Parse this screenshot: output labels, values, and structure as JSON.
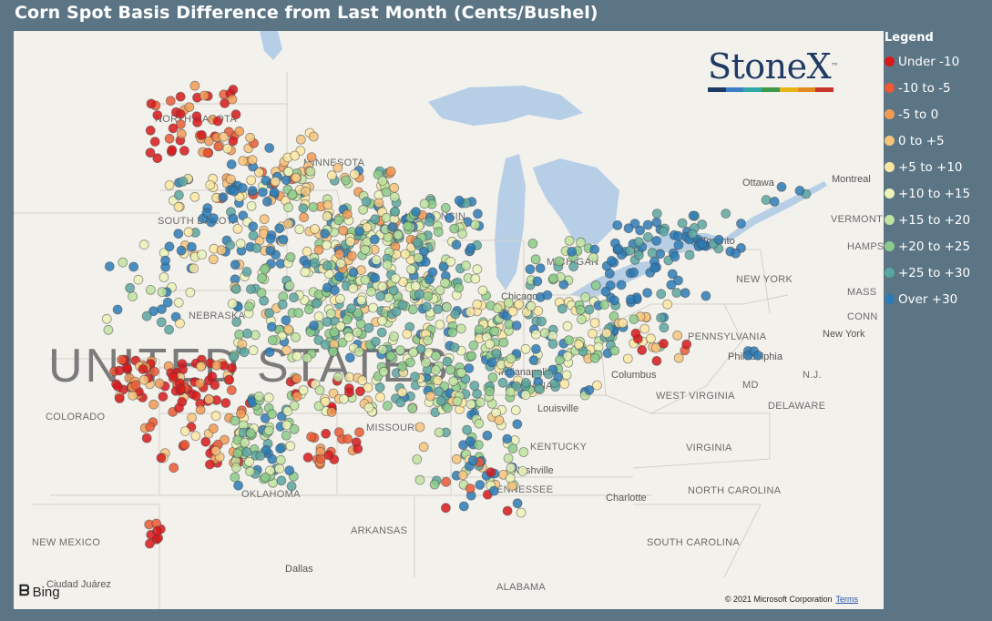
{
  "title": "Corn Spot Basis Difference from Last Month (Cents/Bushel)",
  "legend": {
    "title": "Legend",
    "items": [
      {
        "label": "Under -10",
        "color": "#d7191c"
      },
      {
        "label": "-10 to -5",
        "color": "#ea5a35"
      },
      {
        "label": "-5 to 0",
        "color": "#f19a55"
      },
      {
        "label": "0 to +5",
        "color": "#f7c47c"
      },
      {
        "label": "+5 to +10",
        "color": "#fbe7a3"
      },
      {
        "label": "+10 to +15",
        "color": "#eaf3b8"
      },
      {
        "label": "+15 to +20",
        "color": "#c0e3a0"
      },
      {
        "label": "+20 to +25",
        "color": "#8ccb8a"
      },
      {
        "label": "+25 to +30",
        "color": "#5aa6a1"
      },
      {
        "label": "Over +30",
        "color": "#2c7bb6"
      }
    ]
  },
  "logo": {
    "text": "StoneX",
    "tm": "™",
    "bar_colors": [
      "#1f3a64",
      "#3d7fc4",
      "#2ea8a6",
      "#3a9a48",
      "#e7b518",
      "#e08a1f",
      "#c8352d"
    ]
  },
  "map": {
    "attribution_provider": "Bing",
    "copyright": "© 2021 Microsoft Corporation",
    "terms_link": "Terms",
    "country_label": "UNITED STATES",
    "labels": [
      {
        "text": "NORTH DAKOTA",
        "kind": "state"
      },
      {
        "text": "MINNESOTA",
        "kind": "state"
      },
      {
        "text": "SOUTH DAKOTA",
        "kind": "state"
      },
      {
        "text": "WISCONSIN",
        "kind": "state"
      },
      {
        "text": "MICHIGAN",
        "kind": "state"
      },
      {
        "text": "NEBRASKA",
        "kind": "state"
      },
      {
        "text": "COLORADO",
        "kind": "state"
      },
      {
        "text": "MISSOURI",
        "kind": "state"
      },
      {
        "text": "KENTUCKY",
        "kind": "state"
      },
      {
        "text": "TENNESSEE",
        "kind": "state"
      },
      {
        "text": "OKLAHOMA",
        "kind": "state"
      },
      {
        "text": "ARKANSAS",
        "kind": "state"
      },
      {
        "text": "NEW MEXICO",
        "kind": "state"
      },
      {
        "text": "ALABAMA",
        "kind": "state"
      },
      {
        "text": "WEST VIRGINIA",
        "kind": "state"
      },
      {
        "text": "VIRGINIA",
        "kind": "state"
      },
      {
        "text": "NORTH CAROLINA",
        "kind": "state"
      },
      {
        "text": "SOUTH CAROLINA",
        "kind": "state"
      },
      {
        "text": "PENNSYLVANIA",
        "kind": "state"
      },
      {
        "text": "NEW YORK",
        "kind": "state"
      },
      {
        "text": "VERMONT",
        "kind": "state"
      },
      {
        "text": "HAMPSHIRE",
        "kind": "state"
      },
      {
        "text": "MASS",
        "kind": "state"
      },
      {
        "text": "CONN",
        "kind": "state"
      },
      {
        "text": "N.J.",
        "kind": "state"
      },
      {
        "text": "MD",
        "kind": "state"
      },
      {
        "text": "DELAWARE",
        "kind": "state"
      },
      {
        "text": "INDIANA",
        "kind": "state"
      },
      {
        "text": "Chicago",
        "kind": "city"
      },
      {
        "text": "Columbus",
        "kind": "city"
      },
      {
        "text": "Louisville",
        "kind": "city"
      },
      {
        "text": "Nashville",
        "kind": "city"
      },
      {
        "text": "Indianapolis",
        "kind": "city"
      },
      {
        "text": "Charlotte",
        "kind": "city"
      },
      {
        "text": "Dallas",
        "kind": "city"
      },
      {
        "text": "Ciudad Juárez",
        "kind": "city"
      },
      {
        "text": "Toronto",
        "kind": "city"
      },
      {
        "text": "Ottawa",
        "kind": "city"
      },
      {
        "text": "Montreal",
        "kind": "city"
      },
      {
        "text": "New York",
        "kind": "city"
      },
      {
        "text": "Philadelphia",
        "kind": "city"
      }
    ]
  }
}
